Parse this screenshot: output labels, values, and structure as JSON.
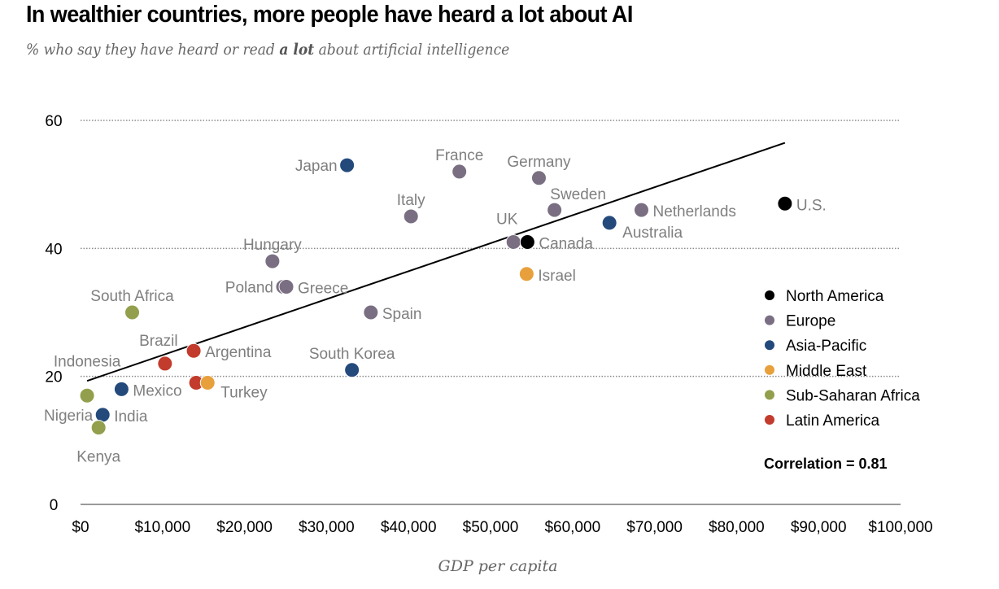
{
  "chart_data": {
    "type": "scatter",
    "title": "In wealthier countries, more people have heard a lot about AI",
    "subtitle_pre": "% who say they have heard or read ",
    "subtitle_bold": "a lot",
    "subtitle_post": " about artificial intelligence",
    "xlabel": "GDP per capita",
    "ylabel": "",
    "xlim": [
      0,
      100000
    ],
    "ylim": [
      0,
      60
    ],
    "x_ticks": [
      {
        "value": 0,
        "label": "$0"
      },
      {
        "value": 10000,
        "label": "$10,000"
      },
      {
        "value": 20000,
        "label": "$20,000"
      },
      {
        "value": 30000,
        "label": "$30,000"
      },
      {
        "value": 40000,
        "label": "$40,000"
      },
      {
        "value": 50000,
        "label": "$50,000"
      },
      {
        "value": 60000,
        "label": "$60,000"
      },
      {
        "value": 70000,
        "label": "$70,000"
      },
      {
        "value": 80000,
        "label": "$80,000"
      },
      {
        "value": 90000,
        "label": "$90,000"
      },
      {
        "value": 100000,
        "label": "$100,000"
      }
    ],
    "y_ticks": [
      {
        "value": 0,
        "label": "0"
      },
      {
        "value": 20,
        "label": "20"
      },
      {
        "value": 40,
        "label": "40"
      },
      {
        "value": 60,
        "label": "60"
      }
    ],
    "grid": "horizontal-dotted",
    "legend_position": "right",
    "regions": [
      {
        "name": "North America",
        "color": "#000000"
      },
      {
        "name": "Europe",
        "color": "#7a6f82"
      },
      {
        "name": "Asia-Pacific",
        "color": "#244a7c"
      },
      {
        "name": "Middle East",
        "color": "#e8a03c"
      },
      {
        "name": "Sub-Saharan Africa",
        "color": "#939f4c"
      },
      {
        "name": "Latin America",
        "color": "#c23b2c"
      }
    ],
    "points": [
      {
        "label": "Japan",
        "region": "Asia-Pacific",
        "x": 32500,
        "y": 53,
        "label_pos": "left"
      },
      {
        "label": "France",
        "region": "Europe",
        "x": 46200,
        "y": 52,
        "label_pos": "above"
      },
      {
        "label": "Germany",
        "region": "Europe",
        "x": 55900,
        "y": 51,
        "label_pos": "above"
      },
      {
        "label": "Italy",
        "region": "Europe",
        "x": 40300,
        "y": 45,
        "label_pos": "above"
      },
      {
        "label": "Sweden",
        "region": "Europe",
        "x": 57800,
        "y": 46,
        "label_pos": "above-right"
      },
      {
        "label": "Netherlands",
        "region": "Europe",
        "x": 68400,
        "y": 46,
        "label_pos": "right"
      },
      {
        "label": "U.S.",
        "region": "North America",
        "x": 85900,
        "y": 47,
        "label_pos": "right"
      },
      {
        "label": "Australia",
        "region": "Asia-Pacific",
        "x": 64500,
        "y": 44,
        "label_pos": "below-right"
      },
      {
        "label": "UK",
        "region": "Europe",
        "x": 52800,
        "y": 41,
        "label_pos": "above-left"
      },
      {
        "label": "Canada",
        "region": "North America",
        "x": 54500,
        "y": 41,
        "label_pos": "right"
      },
      {
        "label": "Israel",
        "region": "Middle East",
        "x": 54400,
        "y": 36,
        "label_pos": "right"
      },
      {
        "label": "Hungary",
        "region": "Europe",
        "x": 23400,
        "y": 38,
        "label_pos": "above"
      },
      {
        "label": "Poland",
        "region": "Europe",
        "x": 24700,
        "y": 34,
        "label_pos": "left"
      },
      {
        "label": "Greece",
        "region": "Europe",
        "x": 25100,
        "y": 34,
        "label_pos": "right"
      },
      {
        "label": "Spain",
        "region": "Europe",
        "x": 35400,
        "y": 30,
        "label_pos": "right"
      },
      {
        "label": "South Africa",
        "region": "Sub-Saharan Africa",
        "x": 6300,
        "y": 30,
        "label_pos": "above"
      },
      {
        "label": "South Korea",
        "region": "Asia-Pacific",
        "x": 33100,
        "y": 21,
        "label_pos": "above"
      },
      {
        "label": "Argentina",
        "region": "Latin America",
        "x": 13800,
        "y": 24,
        "label_pos": "right"
      },
      {
        "label": "Brazil",
        "region": "Latin America",
        "x": 10300,
        "y": 22,
        "label_pos": "above-left"
      },
      {
        "label": "",
        "region": "Latin America",
        "x": 14100,
        "y": 19,
        "label_pos": "none"
      },
      {
        "label": "Turkey",
        "region": "Middle East",
        "x": 15500,
        "y": 19,
        "label_pos": "below-right"
      },
      {
        "label": "Mexico",
        "region": "Asia-Pacific",
        "x": 5000,
        "y": 18,
        "label_pos": "right"
      },
      {
        "label": "Indonesia",
        "region": "Sub-Saharan Africa",
        "x": 800,
        "y": 17,
        "label_pos": "far-above"
      },
      {
        "label": "Nigeria",
        "region": "Asia-Pacific",
        "x": 2700,
        "y": 14,
        "label_pos": "left"
      },
      {
        "label": "India",
        "region": "Asia-Pacific",
        "x": 2700,
        "y": 14,
        "label_pos": "right"
      },
      {
        "label": "Kenya",
        "region": "Sub-Saharan Africa",
        "x": 2200,
        "y": 12,
        "label_pos": "below"
      }
    ],
    "trendline": {
      "x1": 800,
      "y1": 19.3,
      "x2": 85900,
      "y2": 56.5
    },
    "correlation_label": "Correlation = 0.81",
    "correlation": 0.81
  }
}
